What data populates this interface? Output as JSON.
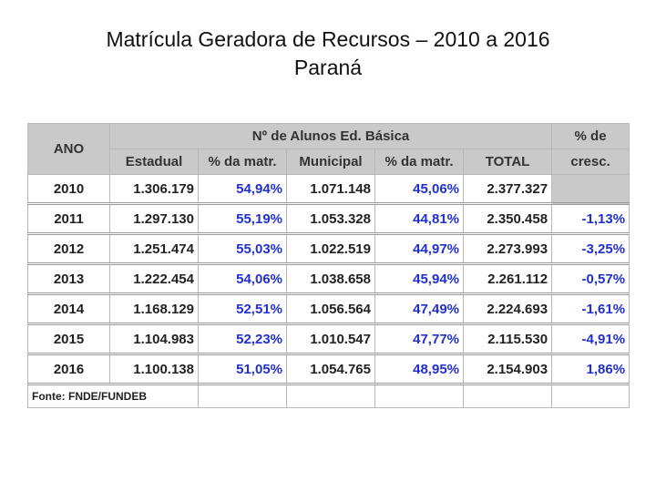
{
  "header": {
    "title": "Matrícula Geradora de Recursos – 2010 a 2016",
    "subtitle": "Paraná"
  },
  "table": {
    "year_header": "ANO",
    "group_header": "Nº de Alunos Ed. Básica",
    "growth_header": [
      "% de",
      "cresc."
    ],
    "columns": [
      "Estadual",
      "% da matr.",
      "Municipal",
      "% da matr.",
      "TOTAL"
    ],
    "rows": [
      [
        "2010",
        "1.306.179",
        "54,94%",
        "1.071.148",
        "45,06%",
        "2.377.327"
      ],
      [
        "2011",
        "1.297.130",
        "55,19%",
        "1.053.328",
        "44,81%",
        "2.350.458",
        "-1,13%"
      ],
      [
        "2012",
        "1.251.474",
        "55,03%",
        "1.022.519",
        "44,97%",
        "2.273.993",
        "-3,25%"
      ],
      [
        "2013",
        "1.222.454",
        "54,06%",
        "1.038.658",
        "45,94%",
        "2.261.112",
        "-0,57%"
      ],
      [
        "2014",
        "1.168.129",
        "52,51%",
        "1.056.564",
        "47,49%",
        "2.224.693",
        "-1,61%"
      ],
      [
        "2015",
        "1.104.983",
        "52,23%",
        "1.010.547",
        "47,77%",
        "2.115.530",
        "-4,91%"
      ],
      [
        "2016",
        "1.100.138",
        "51,05%",
        "1.054.765",
        "48,95%",
        "2.154.903",
        "1,86%"
      ]
    ],
    "source": "Fonte: FNDE/FUNDEB"
  }
}
